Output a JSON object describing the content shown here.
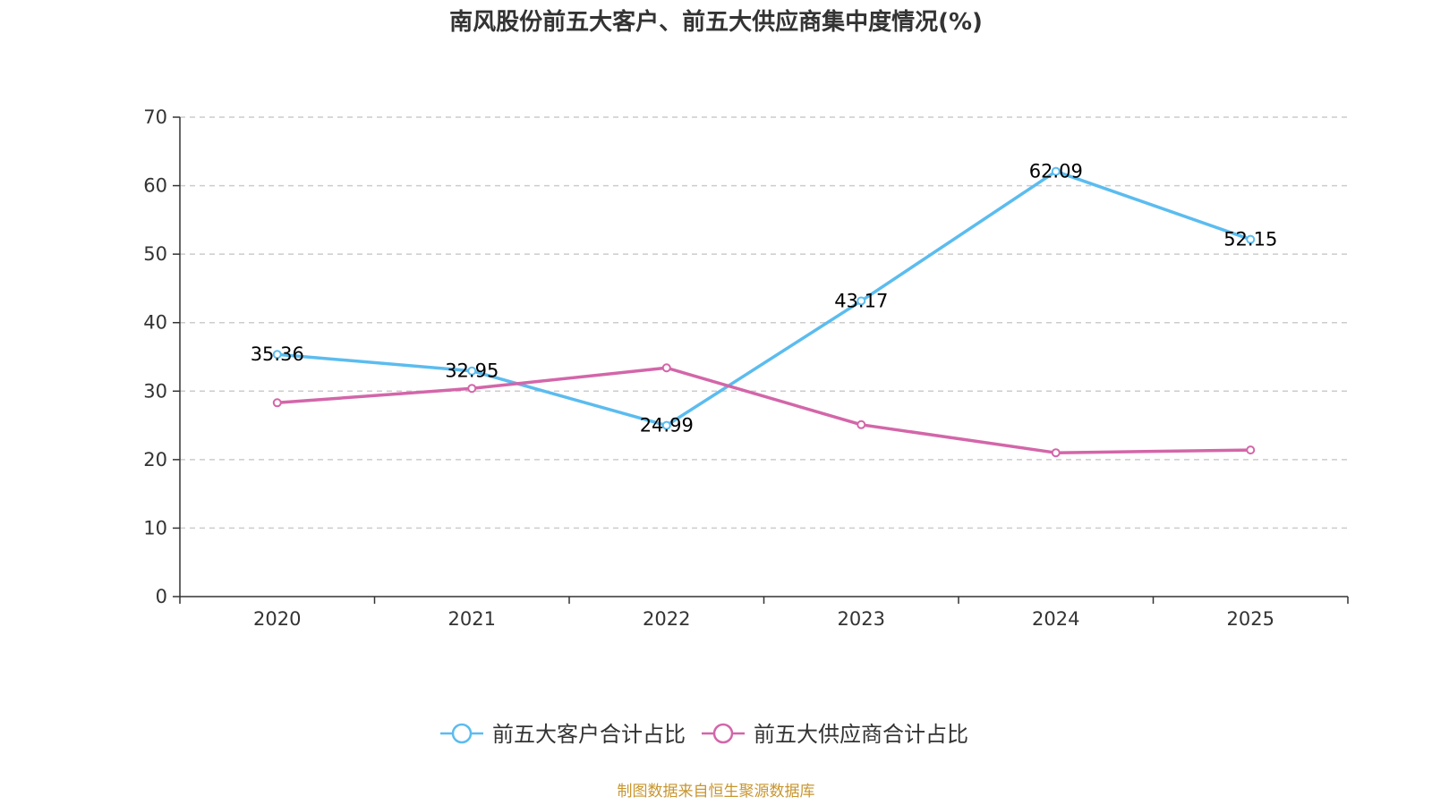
{
  "chart_data": {
    "type": "line",
    "title": "南风股份前五大客户、前五大供应商集中度情况(%)",
    "xlabel": "",
    "ylabel": "",
    "categories": [
      "2020",
      "2021",
      "2022",
      "2023",
      "2024",
      "2025"
    ],
    "ylim": [
      0,
      70
    ],
    "yticks": [
      0,
      10,
      20,
      30,
      40,
      50,
      60,
      70
    ],
    "grid": true,
    "legend_position": "bottom",
    "series": [
      {
        "name": "前五大客户合计占比",
        "color": "#5bbcef",
        "values": [
          35.36,
          32.95,
          24.99,
          43.17,
          62.09,
          52.15
        ],
        "labels": [
          "35.36",
          "32.95",
          "24.99",
          "43.17",
          "62.09",
          "52.15"
        ],
        "show_labels": true
      },
      {
        "name": "前五大供应商合计占比",
        "color": "#d366a9",
        "values": [
          28.3,
          30.4,
          33.4,
          25.1,
          21.0,
          21.4
        ],
        "show_labels": false
      }
    ],
    "source": "制图数据来自恒生聚源数据库"
  }
}
